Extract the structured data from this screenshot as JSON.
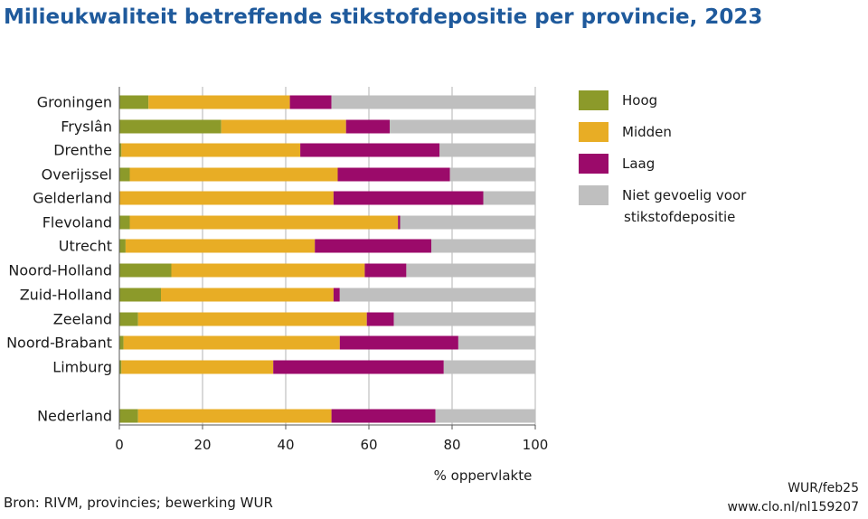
{
  "title": "Milieukwaliteit betreffende stikstofdepositie per provincie, 2023",
  "chart_data": {
    "type": "bar",
    "orientation": "horizontal",
    "stacked": true,
    "categories": [
      "Groningen",
      "Fryslân",
      "Drenthe",
      "Overijssel",
      "Gelderland",
      "Flevoland",
      "Utrecht",
      "Noord-Holland",
      "Zuid-Holland",
      "Zeeland",
      "Noord-Brabant",
      "Limburg",
      "Nederland"
    ],
    "series": [
      {
        "name": "Hoog",
        "color": "#8c9a2a",
        "values": [
          7,
          24.5,
          0.5,
          2.5,
          0,
          2.5,
          1.5,
          12.5,
          10,
          4.5,
          1,
          0.5,
          4.5
        ]
      },
      {
        "name": "Midden",
        "color": "#e8ad25",
        "values": [
          34,
          30,
          43,
          50,
          51.5,
          64.5,
          45.5,
          46.5,
          41.5,
          55,
          52,
          36.5,
          46.5
        ]
      },
      {
        "name": "Laag",
        "color": "#9b0a6a",
        "values": [
          10,
          10.5,
          33.5,
          27,
          36,
          0.5,
          28,
          10,
          1.5,
          6.5,
          28.5,
          41,
          25
        ]
      },
      {
        "name": "Niet gevoelig voor stikstofdepositie",
        "color": "#bfbfbf",
        "values": [
          49,
          35,
          23,
          20.5,
          12.5,
          32.5,
          25,
          31,
          47,
          34,
          18.5,
          22,
          24
        ]
      }
    ],
    "xlabel": "% oppervlakte",
    "xlim": [
      0,
      100
    ],
    "xticks": [
      "0",
      "20",
      "40",
      "60",
      "80",
      "100"
    ],
    "grid": "vertical",
    "legend_position": "right"
  },
  "legend": {
    "items": [
      {
        "label": "Hoog",
        "color": "#8c9a2a"
      },
      {
        "label": "Midden",
        "color": "#e8ad25"
      },
      {
        "label": "Laag",
        "color": "#9b0a6a"
      },
      {
        "label": "Niet gevoelig voor\nstikstofdepositie",
        "color": "#bfbfbf"
      }
    ]
  },
  "source": "Bron: RIVM, provincies; bewerking WUR",
  "credit": {
    "line1": "WUR/feb25",
    "line2": "www.clo.nl/nl159207"
  },
  "colors": {
    "title": "#1f5a9c",
    "grid": "#b3b3b3",
    "axis": "#555555"
  }
}
